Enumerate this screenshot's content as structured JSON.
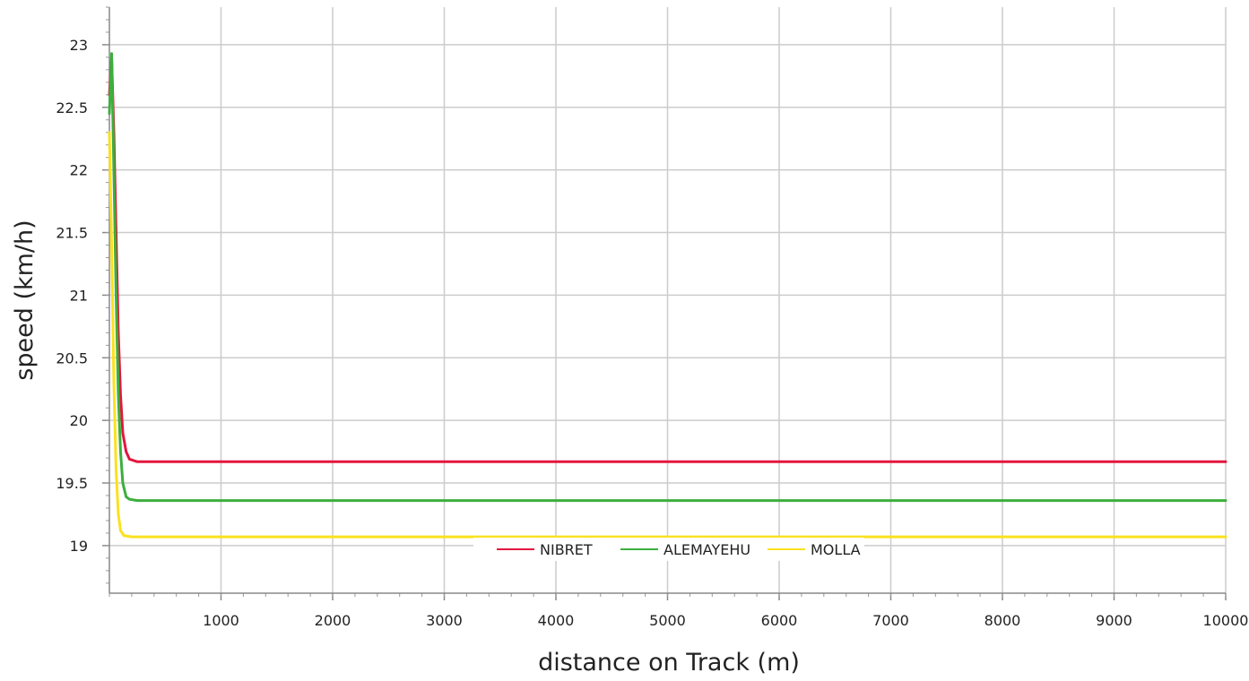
{
  "chart_data": {
    "type": "line",
    "title": "",
    "xlabel": "distance on Track (m)",
    "ylabel": "speed (km/h)",
    "xlim": [
      0,
      10000
    ],
    "ylim": [
      18.62,
      23.3
    ],
    "x_ticks": [
      1000,
      2000,
      3000,
      4000,
      5000,
      6000,
      7000,
      8000,
      9000,
      10000
    ],
    "y_ticks": [
      19,
      19.5,
      20,
      20.5,
      21,
      21.5,
      22,
      22.5,
      23
    ],
    "grid": true,
    "legend": "bottom-center",
    "series": [
      {
        "name": "NIBRET",
        "color": "#e3173e",
        "points": [
          [
            0,
            22.6
          ],
          [
            20,
            22.9
          ],
          [
            40,
            22.3
          ],
          [
            60,
            21.5
          ],
          [
            80,
            20.7
          ],
          [
            100,
            20.2
          ],
          [
            120,
            19.9
          ],
          [
            150,
            19.75
          ],
          [
            180,
            19.69
          ],
          [
            250,
            19.67
          ],
          [
            10000,
            19.67
          ]
        ]
      },
      {
        "name": "ALEMAYEHU",
        "color": "#3caf3c",
        "points": [
          [
            0,
            22.45
          ],
          [
            20,
            22.93
          ],
          [
            40,
            22.0
          ],
          [
            60,
            21.0
          ],
          [
            80,
            20.2
          ],
          [
            100,
            19.75
          ],
          [
            120,
            19.5
          ],
          [
            150,
            19.39
          ],
          [
            180,
            19.37
          ],
          [
            250,
            19.36
          ],
          [
            10000,
            19.36
          ]
        ]
      },
      {
        "name": "MOLLA",
        "color": "#fae11e",
        "points": [
          [
            0,
            22.3
          ],
          [
            20,
            21.4
          ],
          [
            40,
            20.3
          ],
          [
            60,
            19.6
          ],
          [
            80,
            19.25
          ],
          [
            100,
            19.12
          ],
          [
            130,
            19.08
          ],
          [
            200,
            19.07
          ],
          [
            10000,
            19.07
          ]
        ]
      }
    ]
  }
}
